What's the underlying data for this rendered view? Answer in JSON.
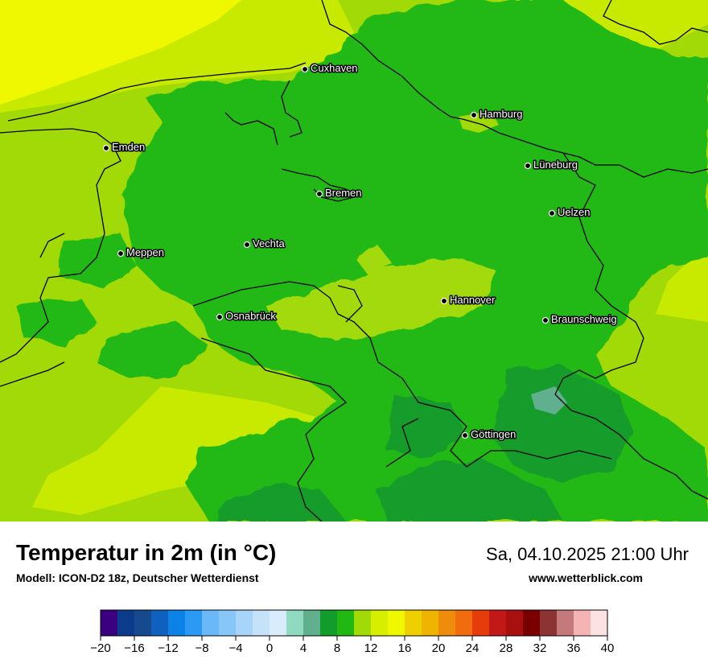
{
  "map": {
    "cities": [
      {
        "name": "Cuxhaven"
      },
      {
        "name": "Hamburg"
      },
      {
        "name": "Emden"
      },
      {
        "name": "Lüneburg"
      },
      {
        "name": "Bremen"
      },
      {
        "name": "Uelzen"
      },
      {
        "name": "Vechta"
      },
      {
        "name": "Meppen"
      },
      {
        "name": "Hannover"
      },
      {
        "name": "Osnabrück"
      },
      {
        "name": "Braunschweig"
      },
      {
        "name": "Göttingen"
      }
    ]
  },
  "header": {
    "title": "Temperatur in 2m (in °C)",
    "subtitle": "Modell: ICON-D2 18z, Deutscher Wetterdienst",
    "datetime": "Sa, 04.10.2025 21:00 Uhr",
    "website": "www.wetterblick.com"
  },
  "legend": {
    "range": [
      -20,
      40
    ],
    "ticks": [
      "−20",
      "−16",
      "−12",
      "−8",
      "−4",
      "0",
      "4",
      "8",
      "12",
      "16",
      "20",
      "24",
      "28",
      "32",
      "36",
      "40"
    ],
    "colors": [
      "#3a0080",
      "#0b3c8c",
      "#154a8f",
      "#1060c0",
      "#0a82e6",
      "#2a9af5",
      "#6ab8f8",
      "#86c6f8",
      "#a8d4fa",
      "#c6e2fb",
      "#d8ecfc",
      "#8fdac0",
      "#60b090",
      "#129c2c",
      "#22b812",
      "#a2da08",
      "#d8ee00",
      "#f0f800",
      "#eed000",
      "#eeb400",
      "#f08c0c",
      "#f06c0c",
      "#e63c0c",
      "#c21818",
      "#a81010",
      "#7a0000",
      "#8c3434",
      "#c47a7a",
      "#f4b4b4",
      "#fde2e4"
    ]
  }
}
